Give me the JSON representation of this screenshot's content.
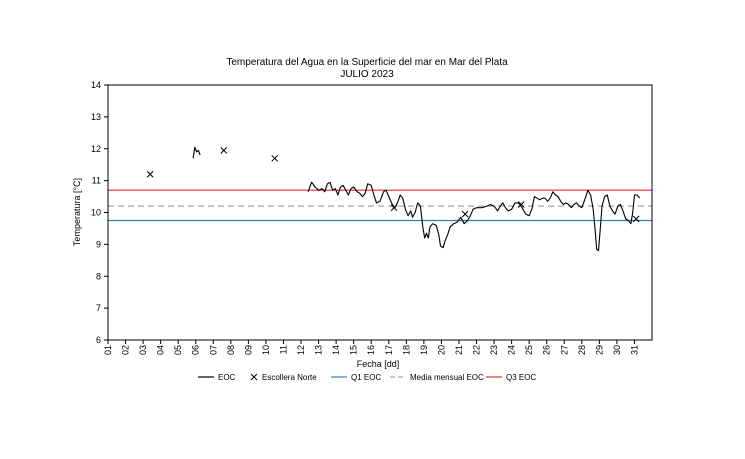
{
  "chart_data": {
    "type": "line",
    "title": "Temperatura del Agua en la Superficie del mar en Mar del Plata",
    "subtitle": "JULIO 2023",
    "xlabel": "Fecha [dd]",
    "ylabel": "Temperatura [°C]",
    "xlim": [
      1,
      32
    ],
    "ylim": [
      6,
      14
    ],
    "x_ticks": [
      "01",
      "02",
      "03",
      "04",
      "05",
      "06",
      "07",
      "08",
      "09",
      "10",
      "11",
      "12",
      "13",
      "14",
      "15",
      "16",
      "17",
      "18",
      "19",
      "20",
      "21",
      "22",
      "23",
      "24",
      "25",
      "26",
      "27",
      "28",
      "29",
      "30",
      "31"
    ],
    "y_ticks": [
      6,
      7,
      8,
      9,
      10,
      11,
      12,
      13,
      14
    ],
    "grid": false,
    "legend_position": "bottom",
    "series": [
      {
        "name": "EOC",
        "kind": "line",
        "color": "#000000",
        "segments": [
          [
            [
              5.85,
              11.7
            ],
            [
              5.95,
              12.05
            ],
            [
              6.05,
              11.9
            ],
            [
              6.15,
              11.95
            ],
            [
              6.25,
              11.8
            ]
          ],
          [
            [
              12.4,
              10.65
            ],
            [
              12.6,
              10.95
            ],
            [
              12.8,
              10.8
            ],
            [
              13.0,
              10.7
            ],
            [
              13.2,
              10.75
            ],
            [
              13.35,
              10.65
            ],
            [
              13.5,
              10.9
            ],
            [
              13.65,
              10.95
            ],
            [
              13.8,
              10.7
            ],
            [
              13.95,
              10.75
            ],
            [
              14.1,
              10.55
            ],
            [
              14.25,
              10.8
            ],
            [
              14.4,
              10.85
            ],
            [
              14.55,
              10.7
            ],
            [
              14.7,
              10.55
            ],
            [
              14.85,
              10.75
            ],
            [
              15.0,
              10.8
            ],
            [
              15.2,
              10.65
            ],
            [
              15.35,
              10.6
            ],
            [
              15.5,
              10.5
            ],
            [
              15.65,
              10.6
            ],
            [
              15.8,
              10.9
            ],
            [
              16.0,
              10.85
            ],
            [
              16.15,
              10.55
            ],
            [
              16.3,
              10.3
            ],
            [
              16.5,
              10.35
            ],
            [
              16.7,
              10.65
            ],
            [
              16.85,
              10.7
            ],
            [
              17.0,
              10.5
            ],
            [
              17.2,
              10.25
            ],
            [
              17.35,
              10.15
            ],
            [
              17.5,
              10.3
            ],
            [
              17.65,
              10.55
            ],
            [
              17.8,
              10.45
            ],
            [
              17.95,
              10.1
            ],
            [
              18.1,
              9.9
            ],
            [
              18.25,
              10.05
            ],
            [
              18.35,
              9.85
            ],
            [
              18.5,
              10.0
            ],
            [
              18.65,
              10.3
            ],
            [
              18.8,
              10.2
            ],
            [
              18.95,
              9.5
            ],
            [
              19.05,
              9.2
            ],
            [
              19.15,
              9.35
            ],
            [
              19.25,
              9.2
            ],
            [
              19.35,
              9.55
            ],
            [
              19.5,
              9.65
            ],
            [
              19.7,
              9.6
            ],
            [
              19.85,
              9.3
            ],
            [
              19.95,
              8.95
            ],
            [
              20.1,
              8.9
            ],
            [
              20.2,
              9.1
            ],
            [
              20.35,
              9.3
            ],
            [
              20.5,
              9.55
            ],
            [
              20.7,
              9.65
            ],
            [
              20.9,
              9.7
            ],
            [
              21.1,
              9.85
            ],
            [
              21.3,
              9.65
            ],
            [
              21.5,
              9.75
            ],
            [
              21.65,
              9.9
            ],
            [
              21.8,
              10.1
            ],
            [
              22.0,
              10.15
            ],
            [
              22.3,
              10.15
            ],
            [
              22.6,
              10.2
            ],
            [
              22.8,
              10.25
            ],
            [
              23.0,
              10.2
            ],
            [
              23.2,
              10.05
            ],
            [
              23.35,
              10.2
            ],
            [
              23.5,
              10.3
            ],
            [
              23.65,
              10.15
            ],
            [
              23.8,
              10.05
            ],
            [
              24.0,
              10.1
            ],
            [
              24.2,
              10.3
            ],
            [
              24.4,
              10.3
            ],
            [
              24.6,
              10.15
            ],
            [
              24.8,
              9.95
            ],
            [
              25.0,
              9.9
            ],
            [
              25.15,
              10.1
            ],
            [
              25.3,
              10.5
            ],
            [
              25.45,
              10.45
            ],
            [
              25.6,
              10.4
            ],
            [
              25.75,
              10.45
            ],
            [
              25.9,
              10.45
            ],
            [
              26.05,
              10.35
            ],
            [
              26.2,
              10.45
            ],
            [
              26.35,
              10.65
            ],
            [
              26.5,
              10.55
            ],
            [
              26.65,
              10.5
            ],
            [
              26.8,
              10.35
            ],
            [
              26.95,
              10.25
            ],
            [
              27.1,
              10.3
            ],
            [
              27.25,
              10.25
            ],
            [
              27.4,
              10.15
            ],
            [
              27.55,
              10.25
            ],
            [
              27.7,
              10.3
            ],
            [
              27.85,
              10.2
            ],
            [
              28.0,
              10.15
            ],
            [
              28.2,
              10.45
            ],
            [
              28.35,
              10.7
            ],
            [
              28.5,
              10.55
            ],
            [
              28.65,
              10.1
            ],
            [
              28.75,
              9.5
            ],
            [
              28.85,
              8.85
            ],
            [
              28.95,
              8.8
            ],
            [
              29.05,
              9.45
            ],
            [
              29.15,
              10.2
            ],
            [
              29.3,
              10.5
            ],
            [
              29.45,
              10.55
            ],
            [
              29.6,
              10.2
            ],
            [
              29.75,
              10.05
            ],
            [
              29.9,
              9.95
            ],
            [
              30.05,
              10.2
            ],
            [
              30.2,
              10.25
            ],
            [
              30.35,
              10.05
            ],
            [
              30.5,
              9.8
            ],
            [
              30.65,
              9.75
            ],
            [
              30.8,
              9.65
            ],
            [
              30.9,
              10.0
            ],
            [
              31.0,
              10.55
            ],
            [
              31.15,
              10.55
            ],
            [
              31.3,
              10.45
            ]
          ]
        ]
      },
      {
        "name": "Escollera Norte",
        "kind": "scatter",
        "marker": "x",
        "color": "#000000",
        "points": [
          [
            3.4,
            11.2
          ],
          [
            7.6,
            11.95
          ],
          [
            10.5,
            11.7
          ],
          [
            17.3,
            10.15
          ],
          [
            21.35,
            9.95
          ],
          [
            24.55,
            10.25
          ],
          [
            31.1,
            9.8
          ]
        ]
      },
      {
        "name": "Q1 EOC",
        "kind": "hline",
        "value": 9.75,
        "color": "#2c7fc0"
      },
      {
        "name": "Media mensual EOC",
        "kind": "hline",
        "value": 10.2,
        "color": "#a6a6a6",
        "dashed": true
      },
      {
        "name": "Q3 EOC",
        "kind": "hline",
        "value": 10.7,
        "color": "#e0312f"
      }
    ]
  }
}
